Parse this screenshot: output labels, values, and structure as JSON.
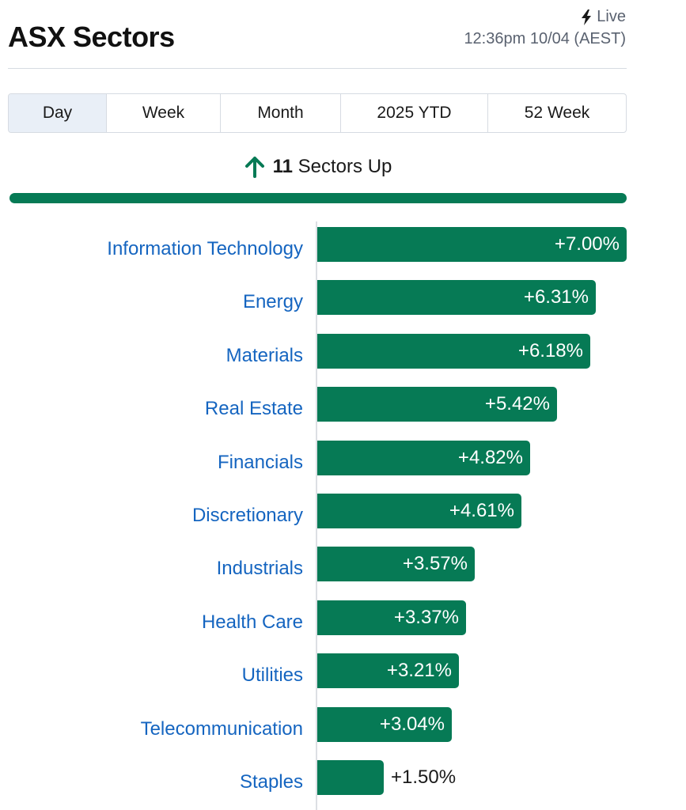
{
  "header": {
    "title": "ASX Sectors",
    "live_label": "Live",
    "live_icon": "lightning-bolt-icon",
    "timestamp": "12:36pm 10/04 (AEST)"
  },
  "tabs": [
    {
      "label": "Day",
      "active": true
    },
    {
      "label": "Week",
      "active": false
    },
    {
      "label": "Month",
      "active": false
    },
    {
      "label": "2025 YTD",
      "active": false
    },
    {
      "label": "52 Week",
      "active": false
    }
  ],
  "summary": {
    "icon": "arrow-up-icon",
    "count": "11",
    "text": "Sectors Up"
  },
  "colors": {
    "up": "#067a55",
    "label": "#1565c0",
    "value_inside": "#ffffff",
    "value_outside": "#1a1a1a"
  },
  "chart_data": {
    "type": "bar",
    "orientation": "horizontal",
    "categories": [
      "Information Technology",
      "Energy",
      "Materials",
      "Real Estate",
      "Financials",
      "Discretionary",
      "Industrials",
      "Health Care",
      "Utilities",
      "Telecommunication",
      "Staples"
    ],
    "values": [
      7.0,
      6.31,
      6.18,
      5.42,
      4.82,
      4.61,
      3.57,
      3.37,
      3.21,
      3.04,
      1.5
    ],
    "value_labels": [
      "+7.00%",
      "+6.31%",
      "+6.18%",
      "+5.42%",
      "+4.82%",
      "+4.61%",
      "+3.57%",
      "+3.37%",
      "+3.21%",
      "+3.04%",
      "+1.50%"
    ],
    "xlim": [
      0,
      7.0
    ],
    "grid": false
  }
}
